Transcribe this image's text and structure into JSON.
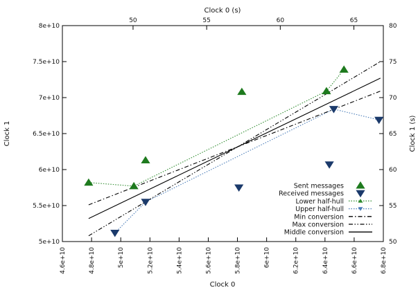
{
  "chart_data": {
    "type": "scatter",
    "title": "",
    "xlabel": "Clock 0",
    "ylabel": "Clock 1",
    "x2label": "Clock 0 (s)",
    "y2label": "Clock 1 (s)",
    "xlim": [
      46000000000.0,
      68000000000.0
    ],
    "ylim": [
      50000000000.0,
      80000000000.0
    ],
    "x2lim": [
      45.2,
      67.0
    ],
    "y2lim": [
      50,
      80
    ],
    "x_ticks": [
      46000000000.0,
      48000000000.0,
      50000000000.0,
      52000000000.0,
      54000000000.0,
      56000000000.0,
      58000000000.0,
      60000000000.0,
      62000000000.0,
      64000000000.0,
      66000000000.0,
      68000000000.0
    ],
    "x_tick_labels": [
      "4.6e+10",
      "4.8e+10",
      "5e+10",
      "5.2e+10",
      "5.4e+10",
      "5.6e+10",
      "5.8e+10",
      "6e+10",
      "6.2e+10",
      "6.4e+10",
      "6.6e+10",
      "6.8e+10"
    ],
    "y_ticks": [
      50000000000.0,
      55000000000.0,
      60000000000.0,
      65000000000.0,
      70000000000.0,
      75000000000.0,
      80000000000.0
    ],
    "y_tick_labels": [
      "5e+10",
      "5.5e+10",
      "6e+10",
      "6.5e+10",
      "7e+10",
      "7.5e+10",
      "8e+10"
    ],
    "x2_ticks": [
      50,
      55,
      60,
      65
    ],
    "x2_tick_labels": [
      "50",
      "55",
      "60",
      "65"
    ],
    "y2_ticks": [
      50,
      55,
      60,
      65,
      70,
      75,
      80
    ],
    "y2_tick_labels": [
      "50",
      "55",
      "60",
      "65",
      "70",
      "75",
      "80"
    ],
    "legend_position": "bottom-right",
    "grid": false,
    "series": [
      {
        "name": "Sent messages",
        "kind": "markers",
        "marker": "triangle-up",
        "color": "#1e7a1e",
        "points": [
          [
            47800000000.0,
            58200000000.0
          ],
          [
            50900000000.0,
            57700000000.0
          ],
          [
            51700000000.0,
            61300000000.0
          ],
          [
            58300000000.0,
            70800000000.0
          ],
          [
            64100000000.0,
            70900000000.0
          ],
          [
            65300000000.0,
            73900000000.0
          ]
        ]
      },
      {
        "name": "Received messages",
        "kind": "markers",
        "marker": "triangle-down",
        "color": "#1b3a6b",
        "points": [
          [
            49600000000.0,
            51200000000.0
          ],
          [
            51700000000.0,
            55500000000.0
          ],
          [
            58100000000.0,
            57500000000.0
          ],
          [
            64300000000.0,
            60700000000.0
          ],
          [
            64600000000.0,
            68400000000.0
          ],
          [
            67700000000.0,
            66900000000.0
          ]
        ]
      },
      {
        "name": "Lower half-hull",
        "kind": "line",
        "marker": "triangle-up-small",
        "dash": "dotted",
        "color": "#2e8b2e",
        "points": [
          [
            47800000000.0,
            58200000000.0
          ],
          [
            50900000000.0,
            57700000000.0
          ],
          [
            64100000000.0,
            70900000000.0
          ],
          [
            65300000000.0,
            73900000000.0
          ]
        ]
      },
      {
        "name": "Upper half-hull",
        "kind": "line",
        "marker": "triangle-down-small",
        "dash": "dotted",
        "color": "#4a7cb8",
        "points": [
          [
            49600000000.0,
            51200000000.0
          ],
          [
            51700000000.0,
            55500000000.0
          ],
          [
            64600000000.0,
            68400000000.0
          ],
          [
            67700000000.0,
            66900000000.0
          ]
        ]
      },
      {
        "name": "Min conversion",
        "kind": "line",
        "dash": "dashdot",
        "color": "#000000",
        "points": [
          [
            47800000000.0,
            55100000000.0
          ],
          [
            67800000000.0,
            70900000000.0
          ]
        ]
      },
      {
        "name": "Max conversion",
        "kind": "line",
        "dash": "dashdotdot",
        "color": "#000000",
        "points": [
          [
            47800000000.0,
            50800000000.0
          ],
          [
            67800000000.0,
            75000000000.0
          ]
        ]
      },
      {
        "name": "Middle conversion",
        "kind": "line",
        "dash": "solid",
        "color": "#000000",
        "points": [
          [
            47800000000.0,
            53200000000.0
          ],
          [
            67800000000.0,
            72700000000.0
          ]
        ]
      }
    ]
  },
  "colors": {
    "sent": "#1e7a1e",
    "received": "#1b3a6b",
    "lower_hull": "#2e8b2e",
    "upper_hull": "#4a7cb8",
    "axis": "#000000"
  }
}
